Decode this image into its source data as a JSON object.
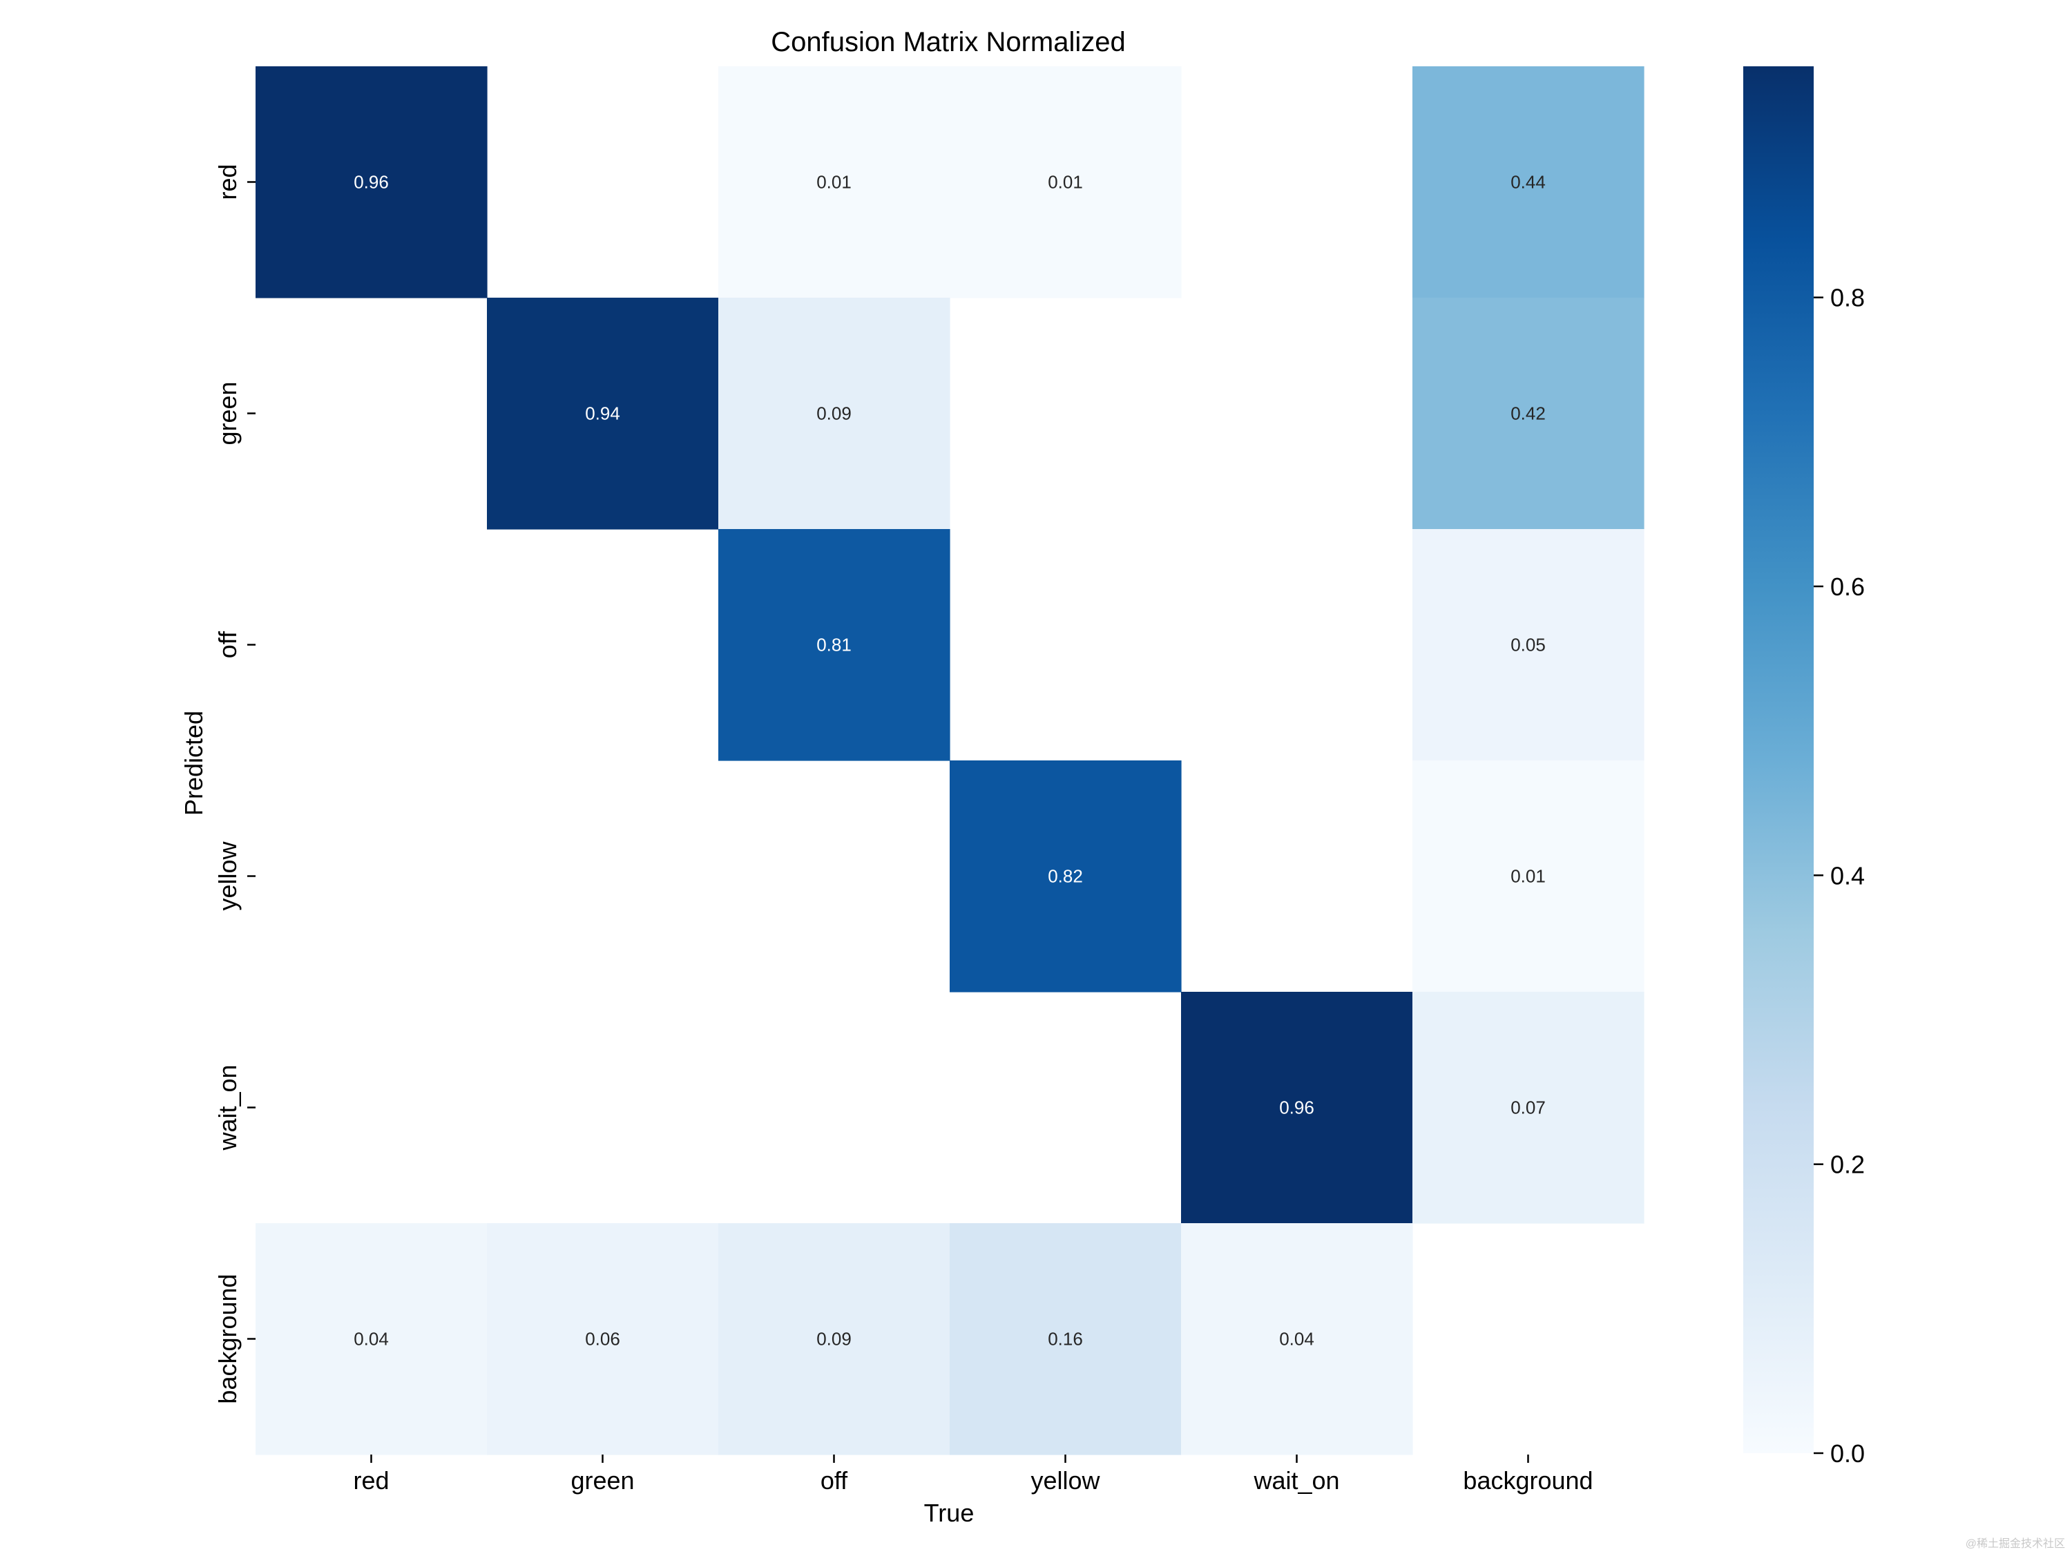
{
  "chart_data": {
    "type": "heatmap",
    "title": "Confusion Matrix Normalized",
    "xlabel": "True",
    "ylabel": "Predicted",
    "x_categories": [
      "red",
      "green",
      "off",
      "yellow",
      "wait_on",
      "background"
    ],
    "y_categories": [
      "red",
      "green",
      "off",
      "yellow",
      "wait_on",
      "background"
    ],
    "values": [
      [
        0.96,
        null,
        0.01,
        0.01,
        null,
        0.44
      ],
      [
        null,
        0.94,
        0.09,
        null,
        null,
        0.42
      ],
      [
        null,
        null,
        0.81,
        null,
        null,
        0.05
      ],
      [
        null,
        null,
        null,
        0.82,
        null,
        0.01
      ],
      [
        null,
        null,
        null,
        null,
        0.96,
        0.07
      ],
      [
        0.04,
        0.06,
        0.09,
        0.16,
        0.04,
        null
      ]
    ],
    "colormap": "Blues",
    "colorbar": {
      "range": [
        0.0,
        0.96
      ],
      "ticks": [
        0.0,
        0.2,
        0.4,
        0.6,
        0.8
      ],
      "tick_labels": [
        "0.0",
        "0.2",
        "0.4",
        "0.6",
        "0.8"
      ]
    },
    "text_color_threshold": 0.5,
    "colors": {
      "text_dark": "#262626",
      "text_light": "#ffffff",
      "cmap_stops": [
        "#f7fbff",
        "#deebf7",
        "#c6dbef",
        "#9ecae1",
        "#6baed6",
        "#4292c6",
        "#2171b5",
        "#08519c",
        "#08306b"
      ]
    }
  },
  "watermark": "@稀土掘金技术社区"
}
